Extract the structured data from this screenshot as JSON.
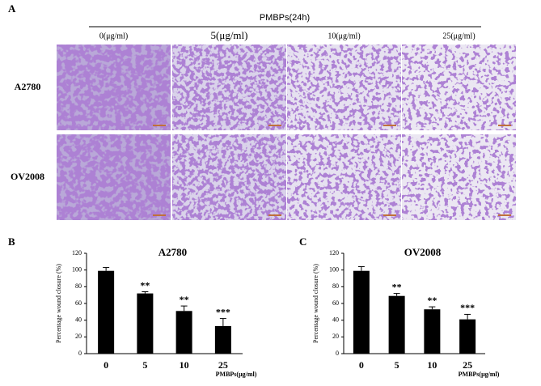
{
  "panel_a": {
    "label": "A",
    "header": "PMBPs(24h)",
    "columns": [
      "0(μg/ml)",
      "5(μg/ml)",
      "10(μg/ml)",
      "25(μg/ml)"
    ],
    "rows": [
      "A2780",
      "OV2008"
    ]
  },
  "chart_data": [
    {
      "type": "bar",
      "panel_label": "B",
      "title": "A2780",
      "ylabel": "Percentage wound closure (%)",
      "xlabel": "PMBPs(μg/ml)",
      "categories": [
        "0",
        "5",
        "10",
        "25"
      ],
      "values": [
        99,
        72,
        51,
        33
      ],
      "errors": [
        4,
        2,
        6,
        9
      ],
      "annotations": [
        null,
        "**",
        "**",
        "***"
      ],
      "color": "#000000",
      "ylim": [
        0,
        120
      ],
      "yticks": [
        0,
        20,
        40,
        60,
        80,
        100,
        120
      ]
    },
    {
      "type": "bar",
      "panel_label": "C",
      "title": "OV2008",
      "ylabel": "Percentage wound closure (%)",
      "xlabel": "PMBPs(μg/ml)",
      "categories": [
        "0",
        "5",
        "10",
        "25"
      ],
      "values": [
        99,
        69,
        53,
        41
      ],
      "errors": [
        5,
        3,
        3,
        6
      ],
      "annotations": [
        null,
        "**",
        "**",
        "***"
      ],
      "color": "#000000",
      "ylim": [
        0,
        120
      ],
      "yticks": [
        0,
        20,
        40,
        60,
        80,
        100,
        120
      ]
    }
  ]
}
